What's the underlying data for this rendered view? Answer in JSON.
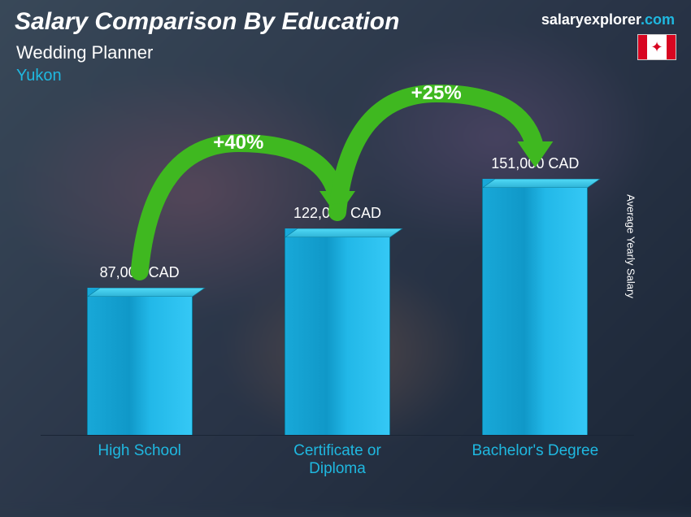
{
  "title": "Salary Comparison By Education",
  "subtitle": "Wedding Planner",
  "region": "Yukon",
  "brand_name": "salaryexplorer",
  "brand_suffix": ".com",
  "y_axis_label": "Average Yearly Salary",
  "title_fontsize": 30,
  "subtitle_fontsize": 22,
  "region_fontsize": 20,
  "brand_fontsize": 18,
  "label_color": "#1fb8e0",
  "bar_color_light": "#35c8f5",
  "bar_color_dark": "#1098c8",
  "arrow_color": "#3fb820",
  "background_base": "#2a3a4a",
  "text_color": "#ffffff",
  "chart": {
    "type": "bar",
    "max_value": 151000,
    "bars": [
      {
        "category": "High School",
        "value": 87000,
        "label": "87,000 CAD"
      },
      {
        "category": "Certificate or Diploma",
        "value": 122000,
        "label": "122,000 CAD"
      },
      {
        "category": "Bachelor's Degree",
        "value": 151000,
        "label": "151,000 CAD"
      }
    ],
    "deltas": [
      {
        "from": 0,
        "to": 1,
        "label": "+40%"
      },
      {
        "from": 1,
        "to": 2,
        "label": "+25%"
      }
    ]
  }
}
